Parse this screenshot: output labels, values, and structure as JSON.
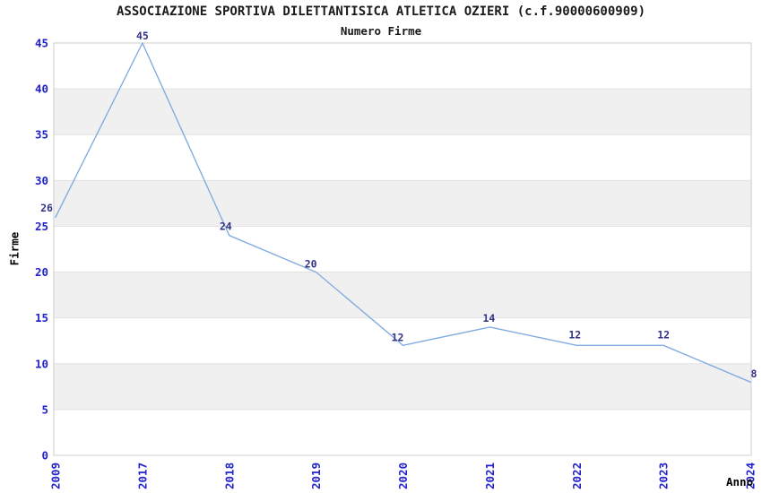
{
  "chart_data": {
    "type": "line",
    "title": "ASSOCIAZIONE SPORTIVA DILETTANTISICA ATLETICA OZIERI (c.f.90000600909)",
    "subtitle": "Numero Firme",
    "xlabel": "Anno",
    "ylabel": "Firme",
    "categories": [
      "2009",
      "2017",
      "2018",
      "2019",
      "2020",
      "2021",
      "2022",
      "2023",
      "2024"
    ],
    "values": [
      26,
      45,
      24,
      20,
      12,
      14,
      12,
      12,
      8
    ],
    "data_labels": [
      "26",
      "45",
      "24",
      "20",
      "12",
      "14",
      "12",
      "12",
      "8"
    ],
    "ylim": [
      0,
      45
    ],
    "yticks": [
      0,
      5,
      10,
      15,
      20,
      25,
      30,
      35,
      40,
      45
    ],
    "band_ranges": [
      [
        5,
        10
      ],
      [
        15,
        20
      ],
      [
        25,
        30
      ],
      [
        35,
        40
      ]
    ],
    "legend": "none",
    "grid": "alternating horizontal gray bands every 5 units",
    "colors": {
      "line": "#83ace0",
      "tick_label": "#2222cc",
      "data_label": "#333388",
      "band": "#f0f0f0",
      "grid_line": "#e2e2e2",
      "plot_border": "#d4d4d4",
      "title": "#1a1a1a",
      "axis_label": "#000000",
      "background": "#ffffff"
    }
  }
}
